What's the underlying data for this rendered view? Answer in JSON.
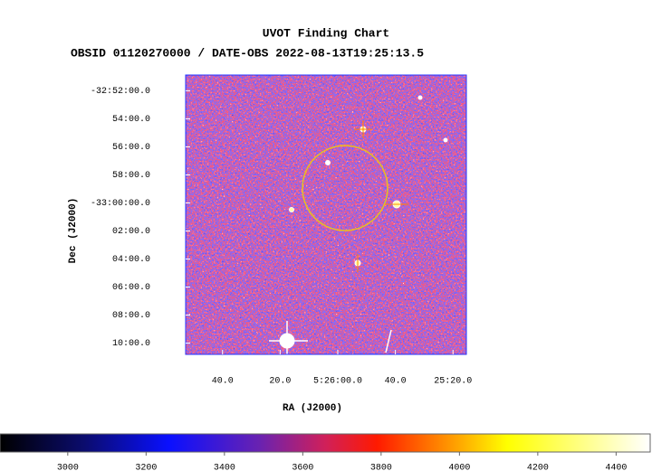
{
  "chart_data": {
    "type": "image",
    "title": "UVOT Finding Chart",
    "subtitle": "OBSID 01120270000 / DATE-OBS 2022-08-13T19:25:13.5",
    "x_label": "RA (J2000)",
    "y_label": "Dec (J2000)",
    "xlim": [
      81.72,
      81.314
    ],
    "xticks": [
      {
        "value": 81.666667,
        "label": "40.0"
      },
      {
        "value": 81.583333,
        "label": "20.0"
      },
      {
        "value": 81.5,
        "label": "5:26:00.0"
      },
      {
        "value": 81.416667,
        "label": "40.0"
      },
      {
        "value": 81.333333,
        "label": "25:20.0"
      }
    ],
    "ylim": [
      -33.18,
      -32.848
    ],
    "yticks": [
      {
        "value": -32.866667,
        "label": "-32:52:00.0"
      },
      {
        "value": -32.9,
        "label": "54:00.0"
      },
      {
        "value": -32.933333,
        "label": "56:00.0"
      },
      {
        "value": -32.966667,
        "label": "58:00.0"
      },
      {
        "value": -33.0,
        "label": "-33:00:00.0"
      },
      {
        "value": -33.033333,
        "label": "02:00.0"
      },
      {
        "value": -33.066667,
        "label": "04:00.0"
      },
      {
        "value": -33.1,
        "label": "06:00.0"
      },
      {
        "value": -33.133333,
        "label": "08:00.0"
      },
      {
        "value": -33.166667,
        "label": "10:00.0"
      }
    ],
    "clim": [
      2827,
      4487
    ],
    "cticks": [
      3000,
      3200,
      3400,
      3600,
      3800,
      4000,
      4200,
      4400
    ]
  }
}
